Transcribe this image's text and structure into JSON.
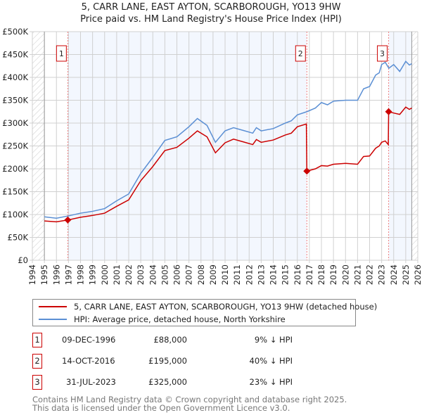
{
  "title": "5, CARR LANE, EAST AYTON, SCARBOROUGH, YO13 9HW",
  "subtitle": "Price paid vs. HM Land Registry's House Price Index (HPI)",
  "chart_data": {
    "type": "line",
    "title": "5, CARR LANE, EAST AYTON, SCARBOROUGH, YO13 9HW",
    "subtitle": "Price paid vs. HM Land Registry's House Price Index (HPI)",
    "xlim": [
      1994,
      2026
    ],
    "ylim": [
      0,
      500000
    ],
    "x_ticks": [
      "1994",
      "1995",
      "1996",
      "1997",
      "1998",
      "1999",
      "2000",
      "2001",
      "2002",
      "2003",
      "2004",
      "2005",
      "2006",
      "2007",
      "2008",
      "2009",
      "2010",
      "2011",
      "2012",
      "2013",
      "2014",
      "2015",
      "2016",
      "2017",
      "2018",
      "2019",
      "2020",
      "2021",
      "2022",
      "2023",
      "2024",
      "2025",
      "2026"
    ],
    "y_ticks": [
      {
        "v": 0,
        "label": "£0"
      },
      {
        "v": 50000,
        "label": "£50K"
      },
      {
        "v": 100000,
        "label": "£100K"
      },
      {
        "v": 150000,
        "label": "£150K"
      },
      {
        "v": 200000,
        "label": "£200K"
      },
      {
        "v": 250000,
        "label": "£250K"
      },
      {
        "v": 300000,
        "label": "£300K"
      },
      {
        "v": 350000,
        "label": "£350K"
      },
      {
        "v": 400000,
        "label": "£400K"
      },
      {
        "v": 450000,
        "label": "£450K"
      },
      {
        "v": 500000,
        "label": "£500K"
      }
    ],
    "grid": true,
    "data_range": [
      1995,
      2025.5
    ],
    "series": [
      {
        "name": "5, CARR LANE, EAST AYTON, SCARBOROUGH, YO13 9HW (detached house)",
        "color": "#cc0000",
        "x": [
          1995,
          1996,
          1996.94,
          1998,
          1999,
          2000,
          2001,
          2002,
          2003,
          2004,
          2005,
          2006,
          2007,
          2007.7,
          2008.5,
          2009.2,
          2010,
          2010.7,
          2011.5,
          2012.3,
          2012.6,
          2013,
          2014,
          2015,
          2015.5,
          2016,
          2016.75,
          2016.79,
          2017.5,
          2018,
          2018.5,
          2019,
          2020,
          2021,
          2021.5,
          2022,
          2022.5,
          2022.8,
          2023,
          2023.3,
          2023.55,
          2023.58,
          2024,
          2024.5,
          2025,
          2025.3,
          2025.5
        ],
        "y": [
          86000,
          84000,
          88000,
          94000,
          98000,
          103000,
          118000,
          132000,
          174000,
          205000,
          240000,
          247000,
          267000,
          283000,
          270000,
          235000,
          257000,
          265000,
          259000,
          253000,
          264000,
          258000,
          263000,
          274000,
          278000,
          292000,
          298000,
          195000,
          200000,
          207000,
          206000,
          210000,
          212000,
          210000,
          227000,
          228000,
          245000,
          250000,
          258000,
          261000,
          253000,
          325000,
          322000,
          319000,
          335000,
          330000,
          333000
        ]
      },
      {
        "name": "HPI: Average price, detached house, North Yorkshire",
        "color": "#5b8fd4",
        "x": [
          1995,
          1996,
          1997,
          1998,
          1999,
          2000,
          2001,
          2002,
          2003,
          2004,
          2005,
          2006,
          2007,
          2007.7,
          2008.5,
          2009.2,
          2010,
          2010.7,
          2011.5,
          2012.3,
          2012.6,
          2013,
          2014,
          2015,
          2015.5,
          2016,
          2016.8,
          2017.5,
          2018,
          2018.5,
          2019,
          2020,
          2021,
          2021.5,
          2022,
          2022.5,
          2022.8,
          2023,
          2023.3,
          2023.6,
          2024,
          2024.5,
          2025,
          2025.3,
          2025.5
        ],
        "y": [
          95000,
          92000,
          97000,
          103000,
          107000,
          113000,
          130000,
          145000,
          190000,
          225000,
          262000,
          270000,
          292000,
          310000,
          295000,
          258000,
          283000,
          290000,
          284000,
          278000,
          290000,
          283000,
          288000,
          300000,
          305000,
          318000,
          325000,
          333000,
          345000,
          340000,
          348000,
          350000,
          350000,
          375000,
          380000,
          405000,
          410000,
          428000,
          433000,
          420000,
          428000,
          413000,
          435000,
          427000,
          430000
        ]
      }
    ],
    "sales": [
      {
        "label": "1",
        "x": 1996.94,
        "y": 88000,
        "date": "09-DEC-1996",
        "price": "£88,000",
        "hpi": "9% ↓ HPI"
      },
      {
        "label": "2",
        "x": 2016.79,
        "y": 195000,
        "date": "14-OCT-2016",
        "price": "£195,000",
        "hpi": "40% ↓ HPI"
      },
      {
        "label": "3",
        "x": 2023.58,
        "y": 325000,
        "date": "31-JUL-2023",
        "price": "£325,000",
        "hpi": "23% ↓ HPI"
      }
    ]
  },
  "legend": {
    "property": "5, CARR LANE, EAST AYTON, SCARBOROUGH, YO13 9HW (detached house)",
    "hpi": "HPI: Average price, detached house, North Yorkshire"
  },
  "footer": {
    "line1": "Contains HM Land Registry data © Crown copyright and database right 2025.",
    "line2": "This data is licensed under the Open Government Licence v3.0."
  }
}
